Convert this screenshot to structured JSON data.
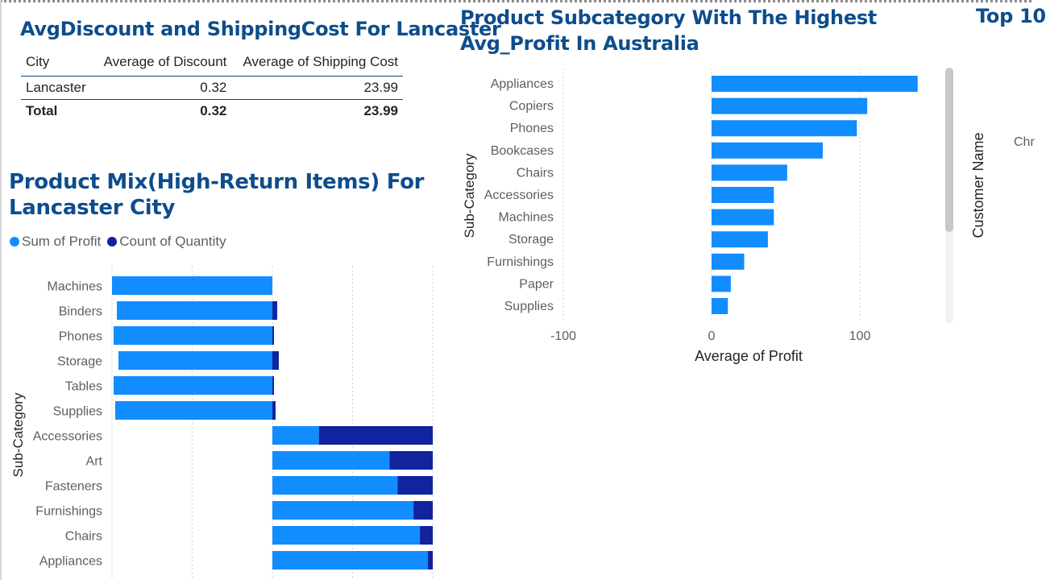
{
  "table_visual": {
    "title": "AvgDiscount and ShippingCost For Lancaster",
    "headers": [
      "City",
      "Average of Discount",
      "Average of Shipping Cost"
    ],
    "rows": [
      [
        "Lancaster",
        "0.32",
        "23.99"
      ]
    ],
    "total": [
      "Total",
      "0.32",
      "23.99"
    ]
  },
  "mix_visual": {
    "title": "Product Mix(High-Return Items) For Lancaster City"
  },
  "australia_visual": {
    "title": "Product Subcategory With The Highest Avg_Profit In Australia"
  },
  "top_visual": {
    "title_fragment": "Top 10",
    "axis_label": "Customer Name",
    "first_label_fragment": "Chr"
  },
  "colors": {
    "title": "#0d4d8c",
    "light_blue": "#118dff",
    "dark_blue": "#12239e"
  },
  "chart_data": [
    {
      "type": "bar",
      "orientation": "horizontal",
      "stacked": "100%",
      "title": "Product Mix(High-Return Items) For Lancaster City",
      "ylabel": "Sub-Category",
      "xlabel": "",
      "categories": [
        "Machines",
        "Binders",
        "Phones",
        "Storage",
        "Tables",
        "Supplies",
        "Accessories",
        "Art",
        "Fasteners",
        "Furnishings",
        "Chairs",
        "Appliances"
      ],
      "series": [
        {
          "name": "Sum of Profit",
          "values": [
            -1.0,
            -0.97,
            -0.99,
            -0.96,
            -0.99,
            -0.98,
            0.29,
            0.73,
            0.78,
            0.88,
            0.92,
            0.97
          ]
        },
        {
          "name": "Count of Quantity",
          "values": [
            0.0,
            0.03,
            0.01,
            0.04,
            0.01,
            0.02,
            0.71,
            0.27,
            0.22,
            0.12,
            0.08,
            0.03
          ]
        }
      ],
      "xlim": [
        -1,
        1
      ],
      "grid": true,
      "legend": "top-left"
    },
    {
      "type": "bar",
      "orientation": "horizontal",
      "title": "Product Subcategory With The Highest Avg_Profit In Australia",
      "xlabel": "Average of Profit",
      "ylabel": "Sub-Category",
      "categories": [
        "Appliances",
        "Copiers",
        "Phones",
        "Bookcases",
        "Chairs",
        "Accessories",
        "Machines",
        "Storage",
        "Furnishings",
        "Paper",
        "Supplies"
      ],
      "values": [
        139,
        105,
        98,
        75,
        51,
        42,
        42,
        38,
        22,
        13,
        11
      ],
      "xticks": [
        "-100",
        "0",
        "100"
      ],
      "xlim": [
        -100,
        140
      ],
      "grid": true
    }
  ]
}
